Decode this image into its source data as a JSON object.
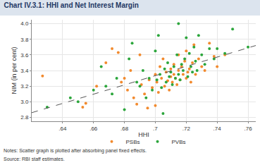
{
  "chart_data": {
    "type": "scatter",
    "title": "Chart IV.3.1: HHI and Net Interest Margin",
    "x_label": "HHI",
    "y_label": "NIM (in per cent)",
    "notes": "Notes: Scatter graph is plotted after absorbing panel fixed effects.",
    "source": "Source: RBI staff estimates.",
    "xlim": [
      0.62,
      0.765
    ],
    "ylim": [
      2.75,
      4.05
    ],
    "xticks": [
      {
        "value": 0.64,
        "label": ".64"
      },
      {
        "value": 0.66,
        "label": ".66"
      },
      {
        "value": 0.68,
        "label": ".68"
      },
      {
        "value": 0.7,
        "label": ".7"
      },
      {
        "value": 0.72,
        "label": ".72"
      },
      {
        "value": 0.74,
        "label": ".74"
      },
      {
        "value": 0.76,
        "label": ".76"
      }
    ],
    "yticks": [
      2.8,
      {
        "value": 3,
        "label": "3.0"
      },
      3.2,
      3.4,
      3.6,
      3.8,
      {
        "value": 4,
        "label": "4.0"
      }
    ],
    "grid": true,
    "legend": "bottom",
    "series": [
      {
        "name": "PSBs",
        "color": "#f28a2e",
        "marker": "circle",
        "type": "scatter",
        "x": [
          0.627,
          0.653,
          0.655,
          0.662,
          0.668,
          0.672,
          0.676,
          0.678,
          0.68,
          0.682,
          0.684,
          0.686,
          0.688,
          0.69,
          0.691,
          0.693,
          0.695,
          0.696,
          0.698,
          0.7,
          0.7,
          0.701,
          0.702,
          0.703,
          0.704,
          0.705,
          0.706,
          0.707,
          0.708,
          0.709,
          0.71,
          0.71,
          0.711,
          0.712,
          0.712,
          0.713,
          0.714,
          0.715,
          0.715,
          0.716,
          0.717,
          0.718,
          0.719,
          0.72,
          0.72,
          0.721,
          0.722,
          0.723,
          0.724,
          0.725,
          0.726,
          0.728,
          0.73,
          0.732,
          0.735,
          0.738,
          0.74,
          0.745
        ],
        "values": [
          3.33,
          2.93,
          2.98,
          3.2,
          3.5,
          3.68,
          3.63,
          3.25,
          3.3,
          3.15,
          3.4,
          3.05,
          2.97,
          3.6,
          3.22,
          3.1,
          2.92,
          3.28,
          3.18,
          2.95,
          3.35,
          3.25,
          3.12,
          3.45,
          3.3,
          3.55,
          3.2,
          3.38,
          3.27,
          3.15,
          3.32,
          3.42,
          3.25,
          3.35,
          3.48,
          3.3,
          3.22,
          3.6,
          3.4,
          3.28,
          3.45,
          3.35,
          3.52,
          3.65,
          3.3,
          3.38,
          3.42,
          3.25,
          3.5,
          3.73,
          3.35,
          3.55,
          3.45,
          3.4,
          3.75,
          3.58,
          3.45,
          3.6
        ]
      },
      {
        "name": "PVBs",
        "color": "#2ca63c",
        "marker": "circle",
        "type": "scatter",
        "x": [
          0.63,
          0.645,
          0.65,
          0.66,
          0.665,
          0.668,
          0.672,
          0.675,
          0.68,
          0.683,
          0.685,
          0.688,
          0.69,
          0.692,
          0.694,
          0.696,
          0.698,
          0.7,
          0.701,
          0.702,
          0.703,
          0.704,
          0.705,
          0.706,
          0.707,
          0.708,
          0.709,
          0.71,
          0.711,
          0.712,
          0.713,
          0.714,
          0.715,
          0.715,
          0.716,
          0.717,
          0.718,
          0.719,
          0.72,
          0.721,
          0.722,
          0.723,
          0.724,
          0.725,
          0.726,
          0.727,
          0.728,
          0.73,
          0.732,
          0.735,
          0.738,
          0.74,
          0.745,
          0.75,
          0.76
        ],
        "values": [
          2.93,
          3.05,
          3.0,
          3.15,
          3.45,
          3.2,
          3.1,
          3.3,
          2.9,
          3.55,
          3.75,
          3.25,
          3.2,
          3.4,
          3.05,
          3.3,
          3.15,
          3.65,
          3.28,
          3.85,
          3.35,
          3.18,
          2.85,
          3.42,
          3.25,
          3.5,
          3.32,
          3.38,
          3.22,
          3.45,
          3.3,
          3.6,
          4.0,
          3.35,
          3.28,
          3.48,
          3.4,
          3.55,
          3.82,
          3.32,
          3.62,
          3.45,
          3.38,
          3.7,
          3.52,
          3.4,
          3.85,
          3.6,
          3.48,
          3.68,
          3.55,
          3.68,
          3.62,
          3.93,
          3.7
        ]
      },
      {
        "type": "line",
        "color": "#555555",
        "line_style": "dashed",
        "x": [
          0.62,
          0.765
        ],
        "values": [
          2.86,
          3.72
        ]
      }
    ]
  }
}
